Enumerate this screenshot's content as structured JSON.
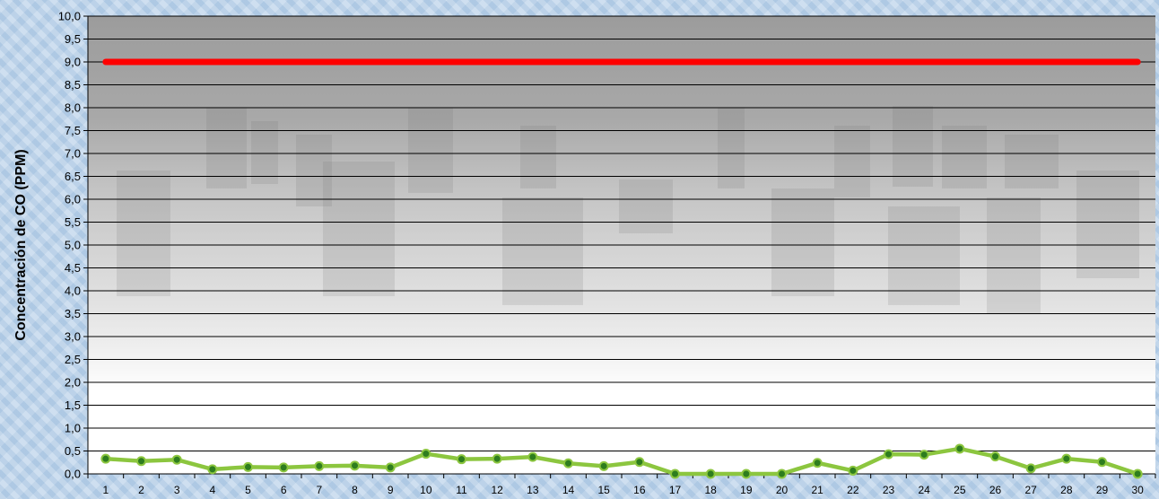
{
  "chart_data": {
    "type": "line",
    "title": "",
    "xlabel": "",
    "ylabel": "Concentración de CO (PPM)",
    "ylim": [
      0,
      10
    ],
    "ytick_step": 0.5,
    "grid": true,
    "x": [
      1,
      2,
      3,
      4,
      5,
      6,
      7,
      8,
      9,
      10,
      11,
      12,
      13,
      14,
      15,
      16,
      17,
      18,
      19,
      20,
      21,
      22,
      23,
      24,
      25,
      26,
      27,
      28,
      29,
      30
    ],
    "series": [
      {
        "color": "#8cc63f",
        "marker_color": "#2e7d1e",
        "values": [
          0.33,
          0.28,
          0.31,
          0.1,
          0.15,
          0.14,
          0.17,
          0.18,
          0.14,
          0.44,
          0.32,
          0.33,
          0.37,
          0.23,
          0.17,
          0.26,
          0.0,
          0.0,
          0.0,
          0.0,
          0.24,
          0.07,
          0.43,
          0.42,
          0.55,
          0.38,
          0.12,
          0.33,
          0.26,
          0.0
        ]
      },
      {
        "color": "#ff0000",
        "values": [
          9.0,
          9.0,
          9.0,
          9.0,
          9.0,
          9.0,
          9.0,
          9.0,
          9.0,
          9.0,
          9.0,
          9.0,
          9.0,
          9.0,
          9.0,
          9.0,
          9.0,
          9.0,
          9.0,
          9.0,
          9.0,
          9.0,
          9.0,
          9.0,
          9.0,
          9.0,
          9.0,
          9.0,
          9.0,
          9.0
        ]
      }
    ],
    "ytick_labels": [
      "0,0",
      "0,5",
      "1,0",
      "1,5",
      "2,0",
      "2,5",
      "3,0",
      "3,5",
      "4,0",
      "4,5",
      "5,0",
      "5,5",
      "6,0",
      "6,5",
      "7,0",
      "7,5",
      "8,0",
      "8,5",
      "9,0",
      "9,5",
      "10,0"
    ]
  }
}
